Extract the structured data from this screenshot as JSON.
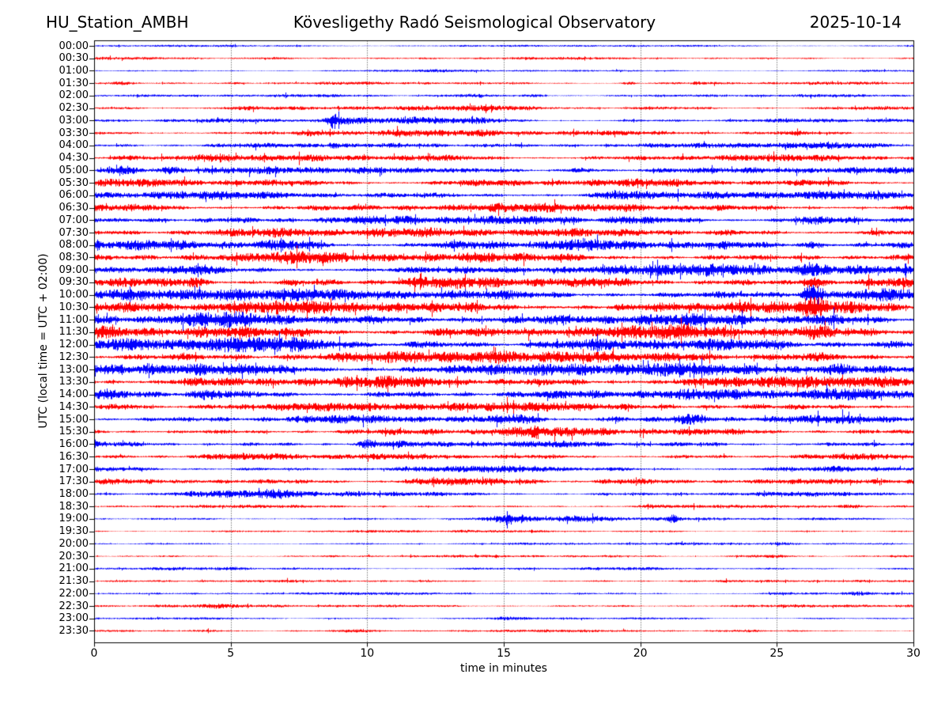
{
  "header": {
    "station": "HU_Station_AMBH",
    "observatory": "Kövesligethy Radó Seismological Observatory",
    "date": "2025-10-14"
  },
  "axes": {
    "ylabel": "UTC (local time = UTC + 02:00)",
    "xlabel": "time in minutes",
    "x_ticks": [
      0,
      5,
      10,
      15,
      20,
      25,
      30
    ],
    "x_range": [
      0,
      30
    ],
    "grid_minutes": [
      5,
      10,
      15,
      20,
      25
    ]
  },
  "colors": {
    "blue": "#0000ff",
    "red": "#ff0000",
    "grid": "#3a3a3a",
    "axis": "#000000",
    "background": "#ffffff"
  },
  "chart_data": {
    "type": "line",
    "subtype": "seismogram-dayplot",
    "title": "HU_Station_AMBH — Kövesligethy Radó Seismological Observatory — 2025-10-14",
    "xlabel": "time in minutes",
    "ylabel": "UTC (local time = UTC + 02:00)",
    "xlim": [
      0,
      30
    ],
    "minutes_per_line": 30,
    "lines": 48,
    "grid": "vertical-dotted-every-5-min",
    "events_format": "[minute, width_sigma_minutes, extra_amplitude_px]",
    "amp_note": "amp = typical noise half-amplitude in px; row spacing is 15.73 px",
    "rows": [
      {
        "time": "00:00",
        "color": "blue",
        "amp": 1.3,
        "events": [
          [
            8,
            0.5,
            0.4
          ]
        ]
      },
      {
        "time": "00:30",
        "color": "red",
        "amp": 1.5,
        "events": [
          [
            6.4,
            0.4,
            1.2
          ],
          [
            12,
            0.8,
            0.5
          ]
        ]
      },
      {
        "time": "01:00",
        "color": "blue",
        "amp": 1.3,
        "events": [
          [
            12.8,
            0.4,
            0.8
          ]
        ]
      },
      {
        "time": "01:30",
        "color": "red",
        "amp": 1.7,
        "events": [
          [
            0.8,
            0.5,
            1.6
          ],
          [
            5.2,
            0.3,
            1.0
          ],
          [
            19.6,
            0.15,
            1.8
          ],
          [
            22.1,
            0.15,
            1.5
          ]
        ]
      },
      {
        "time": "02:00",
        "color": "blue",
        "amp": 1.7,
        "events": [
          [
            13.8,
            0.9,
            1.3
          ],
          [
            16.2,
            0.3,
            1.6
          ]
        ]
      },
      {
        "time": "02:30",
        "color": "red",
        "amp": 2.3,
        "events": [
          [
            5.6,
            0.9,
            1.6
          ],
          [
            11.2,
            0.9,
            1.0
          ],
          [
            14.2,
            1.2,
            1.2
          ],
          [
            20.5,
            0.8,
            0.8
          ]
        ]
      },
      {
        "time": "03:00",
        "color": "blue",
        "amp": 2.3,
        "events": [
          [
            8.75,
            0.12,
            9.5
          ],
          [
            9.3,
            0.5,
            3.0
          ],
          [
            11.4,
            0.6,
            2.2
          ],
          [
            12.8,
            1.0,
            2.8
          ],
          [
            14.2,
            0.5,
            1.5
          ]
        ]
      },
      {
        "time": "03:30",
        "color": "red",
        "amp": 2.9,
        "events": [
          [
            8.3,
            0.7,
            3.2
          ],
          [
            11.2,
            1.1,
            2.4
          ],
          [
            14.3,
            0.6,
            1.5
          ],
          [
            25.8,
            0.8,
            1.0
          ]
        ]
      },
      {
        "time": "04:00",
        "color": "blue",
        "amp": 2.9,
        "events": [
          [
            8.75,
            0.1,
            4.0
          ],
          [
            14.6,
            0.8,
            1.4
          ],
          [
            20.3,
            0.6,
            1.2
          ],
          [
            26.6,
            1.4,
            2.2
          ]
        ]
      },
      {
        "time": "04:30",
        "color": "red",
        "amp": 3.6,
        "events": [
          [
            1.5,
            0.4,
            1.6
          ],
          [
            4.3,
            0.8,
            3.6
          ],
          [
            12.2,
            1.0,
            1.0
          ],
          [
            23.2,
            1.0,
            1.0
          ]
        ]
      },
      {
        "time": "05:00",
        "color": "blue",
        "amp": 3.9,
        "events": [
          [
            1.0,
            0.5,
            5.2
          ],
          [
            2.8,
            0.3,
            2.6
          ],
          [
            10.2,
            0.8,
            1.4
          ],
          [
            17.8,
            0.4,
            2.6
          ]
        ]
      },
      {
        "time": "05:30",
        "color": "red",
        "amp": 4.3,
        "events": [
          [
            6.2,
            0.9,
            1.0
          ],
          [
            14.2,
            1.0,
            1.0
          ],
          [
            26.2,
            0.9,
            1.4
          ]
        ]
      },
      {
        "time": "06:00",
        "color": "blue",
        "amp": 4.6,
        "events": [
          [
            19.4,
            0.6,
            3.0
          ],
          [
            23.2,
            0.8,
            1.4
          ]
        ]
      },
      {
        "time": "06:30",
        "color": "red",
        "amp": 4.9,
        "events": [
          [
            2.1,
            0.7,
            1.4
          ],
          [
            19.5,
            0.5,
            2.0
          ]
        ]
      },
      {
        "time": "07:00",
        "color": "blue",
        "amp": 5.2,
        "events": [
          [
            2.2,
            0.5,
            1.5
          ],
          [
            19.6,
            0.5,
            3.0
          ],
          [
            26.6,
            0.8,
            2.0
          ]
        ]
      },
      {
        "time": "07:30",
        "color": "red",
        "amp": 5.2,
        "events": [
          [
            7.0,
            0.8,
            1.2
          ],
          [
            20.1,
            0.8,
            2.0
          ]
        ]
      },
      {
        "time": "08:00",
        "color": "blue",
        "amp": 5.5,
        "events": [
          [
            6.9,
            0.9,
            3.0
          ],
          [
            14.1,
            0.8,
            2.0
          ],
          [
            17.6,
            0.6,
            2.0
          ],
          [
            26.3,
            0.4,
            3.0
          ]
        ]
      },
      {
        "time": "08:30",
        "color": "red",
        "amp": 5.5,
        "events": [
          [
            7.6,
            0.8,
            2.0
          ],
          [
            14.2,
            0.6,
            2.0
          ],
          [
            17.5,
            0.5,
            1.6
          ]
        ]
      },
      {
        "time": "09:00",
        "color": "blue",
        "amp": 6.0,
        "events": [
          [
            3.6,
            0.4,
            3.0
          ],
          [
            23.2,
            0.8,
            2.0
          ],
          [
            26.3,
            0.4,
            5.0
          ]
        ]
      },
      {
        "time": "09:30",
        "color": "red",
        "amp": 6.2,
        "events": [
          [
            3.6,
            0.3,
            4.0
          ],
          [
            12.2,
            1.0,
            2.0
          ],
          [
            26.3,
            0.3,
            6.5
          ]
        ]
      },
      {
        "time": "10:00",
        "color": "blue",
        "amp": 6.5,
        "events": [
          [
            1.6,
            1.4,
            3.0
          ],
          [
            4.2,
            1.0,
            2.5
          ],
          [
            26.3,
            0.25,
            12.0
          ],
          [
            28.4,
            0.8,
            3.0
          ]
        ]
      },
      {
        "time": "10:30",
        "color": "red",
        "amp": 7.0,
        "events": [
          [
            1.6,
            1.2,
            3.0
          ],
          [
            5.1,
            1.0,
            2.5
          ],
          [
            23.6,
            0.8,
            2.0
          ],
          [
            26.3,
            0.3,
            6.0
          ]
        ]
      },
      {
        "time": "11:00",
        "color": "blue",
        "amp": 7.0,
        "events": [
          [
            4.6,
            1.0,
            2.2
          ],
          [
            13.9,
            0.8,
            1.5
          ],
          [
            26.5,
            0.8,
            3.0
          ]
        ]
      },
      {
        "time": "11:30",
        "color": "red",
        "amp": 7.0,
        "events": [
          [
            4.5,
            0.8,
            3.0
          ],
          [
            7.6,
            1.0,
            2.0
          ],
          [
            21.5,
            0.7,
            2.5
          ],
          [
            26.3,
            0.4,
            4.0
          ]
        ]
      },
      {
        "time": "12:00",
        "color": "blue",
        "amp": 7.0,
        "events": [
          [
            4.6,
            0.6,
            3.0
          ],
          [
            6.6,
            1.2,
            3.0
          ],
          [
            8.9,
            0.6,
            2.2
          ]
        ]
      },
      {
        "time": "12:30",
        "color": "red",
        "amp": 7.0,
        "events": [
          [
            14.6,
            0.6,
            3.0
          ],
          [
            21.6,
            0.8,
            3.2
          ],
          [
            26.6,
            0.8,
            2.0
          ]
        ]
      },
      {
        "time": "13:00",
        "color": "blue",
        "amp": 7.0,
        "events": [
          [
            15.1,
            1.4,
            3.0
          ],
          [
            17.2,
            1.0,
            3.0
          ],
          [
            27.2,
            0.5,
            3.0
          ]
        ]
      },
      {
        "time": "13:30",
        "color": "red",
        "amp": 6.5,
        "events": [
          [
            3.6,
            0.7,
            2.0
          ],
          [
            25.6,
            0.6,
            3.0
          ]
        ]
      },
      {
        "time": "14:00",
        "color": "blue",
        "amp": 6.0,
        "events": [
          [
            4.2,
            0.5,
            4.0
          ],
          [
            27.5,
            0.8,
            2.0
          ]
        ]
      },
      {
        "time": "14:30",
        "color": "red",
        "amp": 5.5,
        "events": [
          [
            1.2,
            0.4,
            2.0
          ],
          [
            4.3,
            0.3,
            2.0
          ]
        ]
      },
      {
        "time": "15:00",
        "color": "blue",
        "amp": 4.6,
        "events": [
          [
            15.5,
            0.5,
            4.0
          ],
          [
            19.0,
            0.5,
            2.0
          ],
          [
            21.8,
            0.5,
            4.0
          ]
        ]
      },
      {
        "time": "15:30",
        "color": "red",
        "amp": 4.3,
        "events": [
          [
            15.3,
            0.4,
            2.0
          ],
          [
            16.2,
            0.15,
            5.5
          ],
          [
            18.1,
            0.5,
            1.6
          ]
        ]
      },
      {
        "time": "16:00",
        "color": "blue",
        "amp": 3.7,
        "events": [
          [
            10.0,
            0.2,
            4.5
          ],
          [
            10.9,
            0.3,
            2.0
          ]
        ]
      },
      {
        "time": "16:30",
        "color": "red",
        "amp": 3.4,
        "events": [
          [
            4.6,
            0.6,
            1.5
          ],
          [
            6.6,
            0.4,
            1.5
          ],
          [
            28.4,
            0.3,
            2.0
          ]
        ]
      },
      {
        "time": "17:00",
        "color": "blue",
        "amp": 3.0,
        "events": [
          [
            14.6,
            0.7,
            2.0
          ],
          [
            16.1,
            0.5,
            2.0
          ],
          [
            27.4,
            0.4,
            1.6
          ]
        ]
      },
      {
        "time": "17:30",
        "color": "red",
        "amp": 3.0,
        "events": [
          [
            12.6,
            1.0,
            3.6
          ],
          [
            14.6,
            0.7,
            3.0
          ],
          [
            16.1,
            0.4,
            2.0
          ],
          [
            19.6,
            0.8,
            1.5
          ]
        ]
      },
      {
        "time": "18:00",
        "color": "blue",
        "amp": 2.6,
        "events": [
          [
            4.1,
            1.2,
            3.0
          ],
          [
            6.6,
            0.8,
            3.6
          ],
          [
            9.6,
            0.5,
            1.5
          ]
        ]
      },
      {
        "time": "18:30",
        "color": "red",
        "amp": 1.8,
        "events": [
          [
            20.6,
            0.4,
            1.5
          ],
          [
            27.6,
            0.3,
            1.5
          ]
        ]
      },
      {
        "time": "19:00",
        "color": "blue",
        "amp": 1.8,
        "events": [
          [
            15.3,
            0.6,
            4.6
          ],
          [
            17.9,
            0.7,
            3.2
          ],
          [
            21.2,
            0.12,
            4.5
          ]
        ]
      },
      {
        "time": "19:30",
        "color": "red",
        "amp": 1.4,
        "events": [
          [
            13.6,
            0.3,
            1.0
          ]
        ]
      },
      {
        "time": "20:00",
        "color": "blue",
        "amp": 1.4,
        "events": [
          [
            25.1,
            0.5,
            1.0
          ]
        ]
      },
      {
        "time": "20:30",
        "color": "red",
        "amp": 1.5,
        "events": [
          [
            24.6,
            0.8,
            1.2
          ]
        ]
      },
      {
        "time": "21:00",
        "color": "blue",
        "amp": 1.7,
        "events": [
          [
            5.1,
            0.4,
            1.0
          ]
        ]
      },
      {
        "time": "21:30",
        "color": "red",
        "amp": 1.4,
        "events": []
      },
      {
        "time": "22:00",
        "color": "blue",
        "amp": 1.5,
        "events": [
          [
            25.1,
            0.5,
            1.5
          ],
          [
            28.1,
            0.3,
            1.5
          ]
        ]
      },
      {
        "time": "22:30",
        "color": "red",
        "amp": 1.8,
        "events": [
          [
            4.6,
            0.5,
            1.0
          ]
        ]
      },
      {
        "time": "23:00",
        "color": "blue",
        "amp": 1.4,
        "events": [
          [
            15.1,
            0.3,
            1.0
          ]
        ]
      },
      {
        "time": "23:30",
        "color": "red",
        "amp": 1.5,
        "events": [
          [
            4.1,
            0.6,
            1.3
          ],
          [
            9.6,
            0.4,
            1.5
          ],
          [
            23.6,
            0.4,
            1.2
          ]
        ]
      }
    ]
  }
}
